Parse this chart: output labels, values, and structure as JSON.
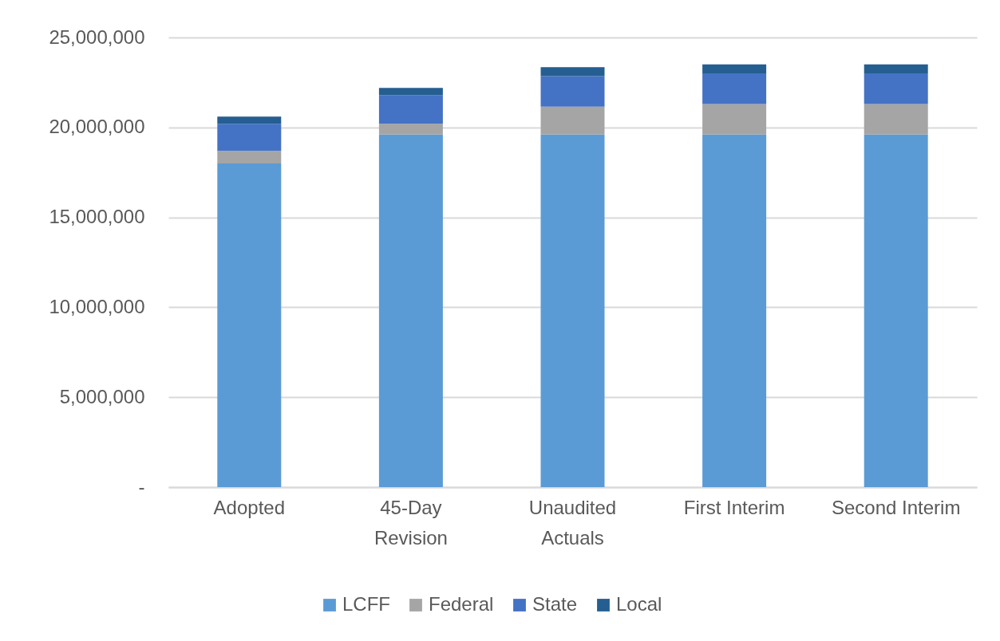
{
  "chart_data": {
    "type": "bar",
    "stacked": true,
    "categories": [
      "Adopted",
      "45-Day Revision",
      "Unaudited Actuals",
      "First Interim",
      "Second Interim"
    ],
    "series": [
      {
        "name": "LCFF",
        "color": "#5b9bd5",
        "values": [
          18000000,
          19600000,
          19600000,
          19600000,
          19600000
        ]
      },
      {
        "name": "Federal",
        "color": "#a5a5a5",
        "values": [
          700000,
          600000,
          1550000,
          1700000,
          1700000
        ]
      },
      {
        "name": "State",
        "color": "#4472c4",
        "values": [
          1500000,
          1600000,
          1700000,
          1700000,
          1700000
        ]
      },
      {
        "name": "Local",
        "color": "#255e91",
        "values": [
          400000,
          400000,
          500000,
          500000,
          500000
        ]
      }
    ],
    "ylim": [
      0,
      25000000
    ],
    "yticks": [
      {
        "value": 0,
        "label": "-"
      },
      {
        "value": 5000000,
        "label": "5,000,000"
      },
      {
        "value": 10000000,
        "label": "10,000,000"
      },
      {
        "value": 15000000,
        "label": "15,000,000"
      },
      {
        "value": 20000000,
        "label": "20,000,000"
      },
      {
        "value": 25000000,
        "label": "25,000,000"
      }
    ],
    "grid": "y",
    "legend": "bottom"
  }
}
